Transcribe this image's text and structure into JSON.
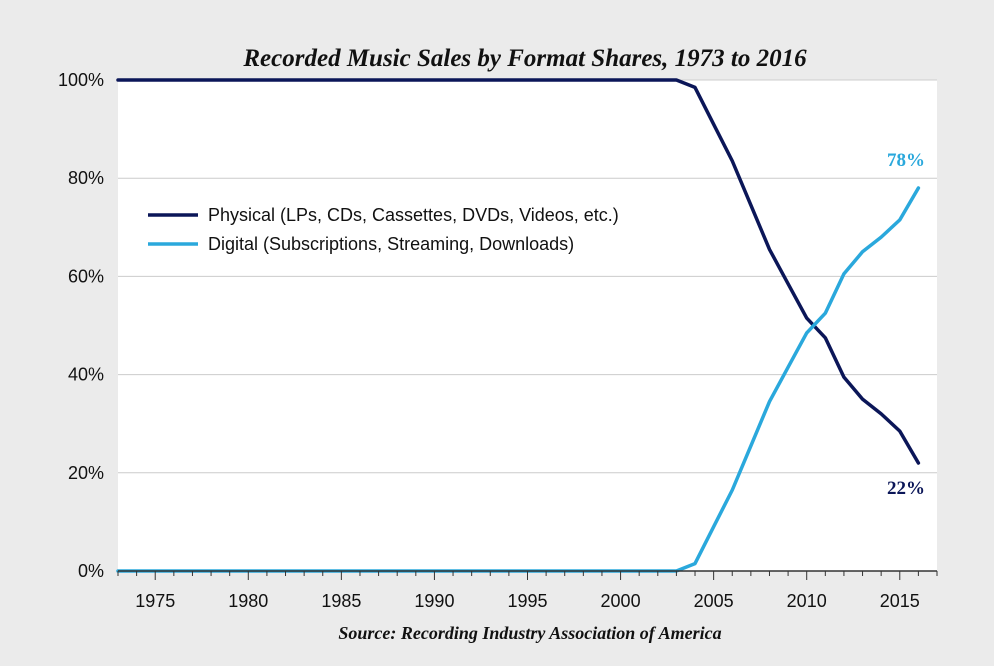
{
  "colors": {
    "background": "#ebebeb",
    "plot_background": "#ffffff",
    "grid": "#cccccc",
    "physical": "#0b1658",
    "digital": "#2aa8dc"
  },
  "chart_data": {
    "type": "line",
    "title": "Recorded Music Sales by Format Shares, 1973 to 2016",
    "source": "Source: Recording Industry Association of America",
    "xlabel": "",
    "ylabel": "",
    "xlim": [
      1973,
      2017
    ],
    "ylim": [
      0,
      100
    ],
    "x_ticks": [
      1975,
      1980,
      1985,
      1990,
      1995,
      2000,
      2005,
      2010,
      2015
    ],
    "y_ticks": [
      0,
      20,
      40,
      60,
      80,
      100
    ],
    "y_tick_labels": [
      "0%",
      "20%",
      "40%",
      "60%",
      "80%",
      "100%"
    ],
    "grid": "horizontal",
    "legend_position": "upper-left",
    "x": [
      1973,
      2003,
      2004,
      2005,
      2006,
      2007,
      2008,
      2009,
      2010,
      2011,
      2012,
      2013,
      2014,
      2015,
      2016
    ],
    "series": [
      {
        "name": "Physical (LPs, CDs, Cassettes, DVDs, Videos, etc.)",
        "color": "#0b1658",
        "values": [
          100,
          100,
          98.5,
          91,
          83.5,
          74.5,
          65.5,
          58.5,
          51.5,
          47.5,
          39.5,
          35,
          32,
          28.5,
          22
        ],
        "end_label": "22%"
      },
      {
        "name": "Digital (Subscriptions, Streaming, Downloads)",
        "color": "#2aa8dc",
        "values": [
          0,
          0,
          1.5,
          9,
          16.5,
          25.5,
          34.5,
          41.5,
          48.5,
          52.5,
          60.5,
          65,
          68,
          71.5,
          78
        ],
        "end_label": "78%"
      }
    ]
  }
}
